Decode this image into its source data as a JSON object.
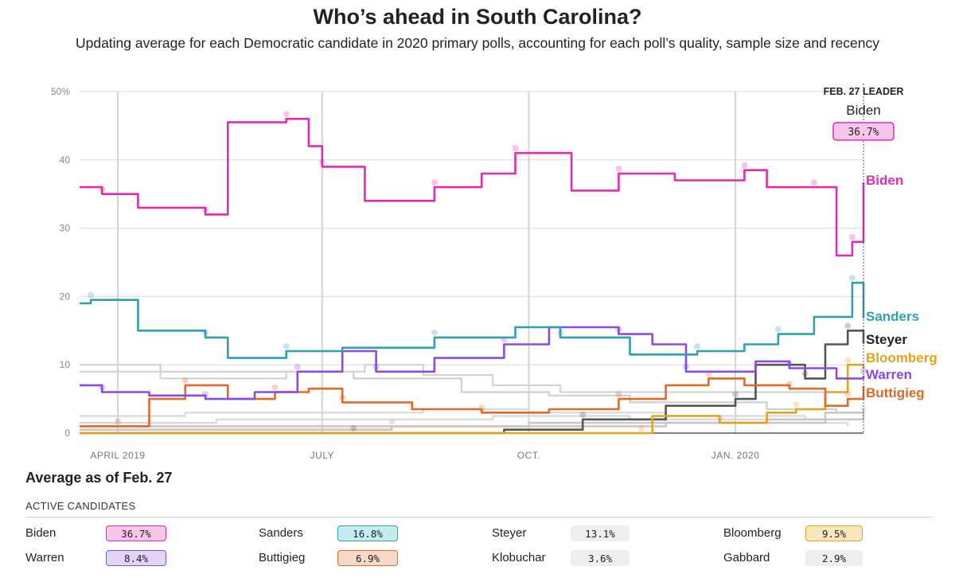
{
  "title": "Who’s ahead in South Carolina?",
  "subtitle": "Updating average for each Democratic candidate in 2020 primary polls, accounting for each poll’s quality, sample size and recency",
  "chart_data": {
    "type": "line",
    "x_ticks": [
      "APRIL 2019",
      "JULY",
      "OCT.",
      "JAN. 2020"
    ],
    "y_ticks": [
      "50%",
      "40",
      "30",
      "20",
      "10",
      "0"
    ],
    "ylim": [
      0,
      50
    ],
    "grid": true,
    "x_domain": [
      "2019-03-15",
      "2020-02-27"
    ],
    "leader": {
      "heading": "FEB. 27 LEADER",
      "name": "Biden",
      "value": "36.7%"
    },
    "series": [
      {
        "name": "Biden",
        "color": "#e02bb4",
        "x": [
          "2019-03-15",
          "2019-03-25",
          "2019-04-10",
          "2019-05-10",
          "2019-05-20",
          "2019-06-15",
          "2019-06-25",
          "2019-07-01",
          "2019-07-20",
          "2019-08-20",
          "2019-09-10",
          "2019-09-25",
          "2019-10-20",
          "2019-11-10",
          "2019-12-05",
          "2020-01-05",
          "2020-01-15",
          "2020-02-05",
          "2020-02-15",
          "2020-02-22",
          "2020-02-27"
        ],
        "y": [
          36,
          35,
          33,
          32,
          45.5,
          46,
          42,
          39,
          34,
          36,
          38,
          41,
          35.5,
          38,
          37,
          38.5,
          36,
          36,
          26,
          28,
          36.7
        ]
      },
      {
        "name": "Sanders",
        "color": "#30a0b0",
        "x": [
          "2019-03-15",
          "2019-03-20",
          "2019-04-10",
          "2019-05-10",
          "2019-05-20",
          "2019-06-15",
          "2019-07-10",
          "2019-08-20",
          "2019-09-25",
          "2019-10-15",
          "2019-11-15",
          "2019-12-15",
          "2020-01-05",
          "2020-01-20",
          "2020-02-05",
          "2020-02-22",
          "2020-02-27"
        ],
        "y": [
          19,
          19.5,
          15,
          14,
          11,
          12,
          12.5,
          14,
          15.5,
          14,
          11.5,
          12,
          13,
          14.5,
          17,
          22,
          16.8
        ]
      },
      {
        "name": "Steyer",
        "color": "#555555",
        "x": [
          "2019-03-15",
          "2019-07-15",
          "2019-09-20",
          "2019-10-25",
          "2019-12-01",
          "2020-01-01",
          "2020-01-10",
          "2020-02-01",
          "2020-02-10",
          "2020-02-20",
          "2020-02-27"
        ],
        "y": [
          0,
          0,
          0.5,
          2,
          4,
          5,
          10,
          8,
          13,
          15,
          13.1
        ]
      },
      {
        "name": "Bloomberg",
        "color": "#e0a420",
        "x": [
          "2019-03-15",
          "2019-11-20",
          "2019-11-25",
          "2019-12-25",
          "2020-01-15",
          "2020-01-28",
          "2020-02-10",
          "2020-02-20",
          "2020-02-27"
        ],
        "y": [
          0,
          0,
          2.5,
          1.5,
          3,
          3.5,
          6,
          10,
          9.5
        ]
      },
      {
        "name": "Warren",
        "color": "#8b4ae0",
        "x": [
          "2019-03-15",
          "2019-03-25",
          "2019-04-15",
          "2019-05-10",
          "2019-06-01",
          "2019-06-20",
          "2019-07-10",
          "2019-07-25",
          "2019-08-20",
          "2019-09-20",
          "2019-10-10",
          "2019-11-10",
          "2019-11-25",
          "2019-12-10",
          "2020-01-10",
          "2020-01-25",
          "2020-02-15",
          "2020-02-27"
        ],
        "y": [
          7,
          6,
          5.5,
          5,
          6,
          9,
          12,
          9,
          11,
          13,
          15.5,
          14.5,
          13,
          9,
          10.5,
          9.5,
          8,
          8.4
        ]
      },
      {
        "name": "Buttigieg",
        "color": "#e06a28",
        "x": [
          "2019-03-15",
          "2019-04-01",
          "2019-04-15",
          "2019-05-01",
          "2019-05-20",
          "2019-06-10",
          "2019-06-25",
          "2019-07-10",
          "2019-08-10",
          "2019-09-10",
          "2019-10-10",
          "2019-11-10",
          "2019-12-01",
          "2019-12-20",
          "2020-01-05",
          "2020-01-25",
          "2020-02-10",
          "2020-02-20",
          "2020-02-27"
        ],
        "y": [
          1,
          1,
          5,
          7,
          5,
          6,
          6.5,
          4.5,
          3.5,
          3,
          3.5,
          5,
          7,
          8,
          7,
          6.5,
          4,
          5,
          6.9
        ]
      },
      {
        "name": "Klobuchar",
        "color": "#c8c8c8",
        "x": [
          "2019-03-15",
          "2019-08-01",
          "2019-10-01",
          "2019-12-01",
          "2020-01-15",
          "2020-02-10",
          "2020-02-27"
        ],
        "y": [
          1,
          1,
          1.5,
          1.5,
          1.5,
          3,
          3.6
        ]
      },
      {
        "name": "Gabbard",
        "color": "#c8c8c8",
        "x": [
          "2019-03-15",
          "2019-08-01",
          "2019-10-01",
          "2019-12-01",
          "2020-01-15",
          "2020-02-27"
        ],
        "y": [
          0.5,
          1,
          1,
          1.5,
          2,
          2.9
        ]
      }
    ],
    "inactive_series": [
      {
        "color": "#cfcfcf",
        "x": [
          "2019-03-15",
          "2019-04-20",
          "2019-06-01",
          "2019-07-15",
          "2019-09-01",
          "2019-10-10",
          "2019-11-15",
          "2020-01-15",
          "2020-02-15"
        ],
        "y": [
          10,
          9,
          9,
          8,
          6,
          5.5,
          4.5,
          3.5,
          3
        ]
      },
      {
        "color": "#d4d4d4",
        "x": [
          "2019-03-15",
          "2019-04-20",
          "2019-06-15",
          "2019-07-20",
          "2019-08-15",
          "2019-09-15",
          "2019-10-15",
          "2019-11-30",
          "2020-01-15",
          "2020-02-10"
        ],
        "y": [
          9,
          8,
          9,
          10,
          8.5,
          7,
          6,
          6,
          6,
          5
        ]
      },
      {
        "color": "#d8d8d8",
        "x": [
          "2019-03-15",
          "2019-05-01",
          "2019-07-01",
          "2019-08-15",
          "2019-10-01",
          "2019-12-01",
          "2020-02-01"
        ],
        "y": [
          2.5,
          3,
          3,
          3.5,
          3,
          2.5,
          2
        ]
      },
      {
        "color": "#d8d8d8",
        "x": [
          "2019-03-15",
          "2019-05-15",
          "2019-07-15",
          "2019-09-15",
          "2019-11-15",
          "2020-01-15",
          "2020-02-20"
        ],
        "y": [
          1.5,
          2,
          2,
          2.5,
          2,
          1.5,
          1
        ]
      }
    ]
  },
  "summary": {
    "title": "Average as of Feb. 27",
    "section_label": "ACTIVE CANDIDATES",
    "candidates": [
      {
        "name": "Biden",
        "value": "36.7%",
        "bg": "#f8c6ea",
        "border": "#e02bb4"
      },
      {
        "name": "Sanders",
        "value": "16.8%",
        "bg": "#c4ecef",
        "border": "#30a0b0"
      },
      {
        "name": "Steyer",
        "value": "13.1%",
        "bg": "#eeeeee",
        "border": "#eeeeee"
      },
      {
        "name": "Bloomberg",
        "value": "9.5%",
        "bg": "#f8e6bc",
        "border": "#e0a420"
      },
      {
        "name": "Warren",
        "value": "8.4%",
        "bg": "#e2d4f8",
        "border": "#8b4ae0"
      },
      {
        "name": "Buttigieg",
        "value": "6.9%",
        "bg": "#f8d8c6",
        "border": "#e06a28"
      },
      {
        "name": "Klobuchar",
        "value": "3.6%",
        "bg": "#eeeeee",
        "border": "#eeeeee"
      },
      {
        "name": "Gabbard",
        "value": "2.9%",
        "bg": "#eeeeee",
        "border": "#eeeeee"
      }
    ]
  }
}
